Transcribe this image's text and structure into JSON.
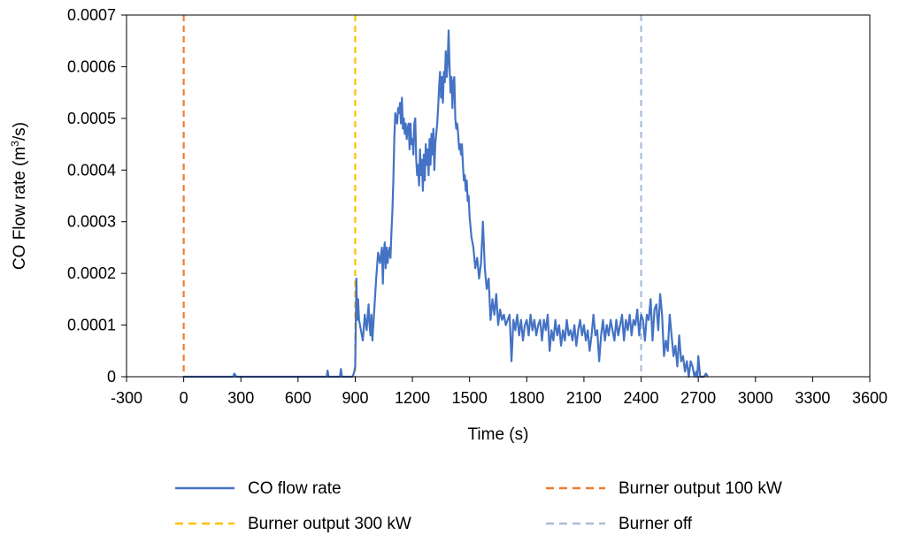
{
  "chart_data": {
    "type": "line",
    "xlabel": "Time (s)",
    "ylabel_main": "CO Flow rate (m",
    "ylabel_sup": "3",
    "ylabel_end": "/s)",
    "xlim": [
      -300,
      3600
    ],
    "ylim": [
      0,
      0.0007
    ],
    "x_ticks": [
      -300,
      0,
      300,
      600,
      900,
      1200,
      1500,
      1800,
      2100,
      2400,
      2700,
      3000,
      3300,
      3600
    ],
    "x_tick_labels": [
      "-300",
      "0",
      "300",
      "600",
      "900",
      "1200",
      "1500",
      "1800",
      "2100",
      "2400",
      "2700",
      "3000",
      "3300",
      "3600"
    ],
    "y_ticks": [
      0,
      0.0001,
      0.0002,
      0.0003,
      0.0004,
      0.0005,
      0.0006,
      0.0007
    ],
    "y_tick_labels": [
      "0",
      "0.0001",
      "0.0002",
      "0.0003",
      "0.0004",
      "0.0005",
      "0.0006",
      "0.0007"
    ],
    "grid": false,
    "legend_position": "bottom",
    "series": [
      {
        "name": "CO flow rate",
        "color": "#4472c4",
        "style": "solid",
        "x": [
          0,
          260,
          265,
          270,
          275,
          280,
          750,
          755,
          760,
          820,
          825,
          830,
          885,
          890,
          895,
          900,
          903,
          906,
          910,
          915,
          920,
          930,
          940,
          950,
          960,
          970,
          975,
          980,
          985,
          990,
          1000,
          1010,
          1020,
          1030,
          1040,
          1045,
          1050,
          1055,
          1060,
          1065,
          1070,
          1075,
          1080,
          1085,
          1090,
          1095,
          1100,
          1105,
          1110,
          1115,
          1120,
          1125,
          1130,
          1135,
          1140,
          1145,
          1150,
          1155,
          1160,
          1165,
          1170,
          1175,
          1180,
          1185,
          1190,
          1195,
          1200,
          1205,
          1210,
          1215,
          1220,
          1225,
          1230,
          1235,
          1240,
          1245,
          1250,
          1255,
          1260,
          1265,
          1270,
          1275,
          1280,
          1285,
          1290,
          1295,
          1300,
          1305,
          1310,
          1315,
          1320,
          1325,
          1330,
          1335,
          1340,
          1345,
          1350,
          1355,
          1360,
          1365,
          1370,
          1375,
          1380,
          1385,
          1390,
          1395,
          1400,
          1405,
          1410,
          1415,
          1420,
          1425,
          1430,
          1435,
          1440,
          1445,
          1450,
          1455,
          1460,
          1465,
          1470,
          1475,
          1480,
          1485,
          1490,
          1495,
          1500,
          1510,
          1520,
          1530,
          1540,
          1550,
          1560,
          1570,
          1580,
          1590,
          1600,
          1610,
          1620,
          1630,
          1640,
          1650,
          1660,
          1670,
          1680,
          1690,
          1700,
          1710,
          1720,
          1730,
          1740,
          1750,
          1760,
          1770,
          1780,
          1790,
          1800,
          1810,
          1820,
          1830,
          1840,
          1850,
          1860,
          1870,
          1880,
          1890,
          1900,
          1910,
          1920,
          1930,
          1940,
          1950,
          1960,
          1970,
          1980,
          1990,
          2000,
          2010,
          2020,
          2030,
          2040,
          2050,
          2060,
          2070,
          2080,
          2090,
          2100,
          2110,
          2120,
          2130,
          2140,
          2150,
          2160,
          2170,
          2180,
          2190,
          2200,
          2210,
          2220,
          2230,
          2240,
          2250,
          2260,
          2270,
          2280,
          2290,
          2300,
          2310,
          2320,
          2330,
          2340,
          2350,
          2360,
          2370,
          2380,
          2390,
          2400,
          2410,
          2420,
          2430,
          2440,
          2450,
          2460,
          2470,
          2480,
          2490,
          2500,
          2510,
          2520,
          2530,
          2540,
          2550,
          2560,
          2570,
          2580,
          2590,
          2600,
          2610,
          2620,
          2630,
          2640,
          2650,
          2660,
          2670,
          2680,
          2690,
          2695,
          2700,
          2710,
          2720,
          2730,
          2740,
          2750
        ],
        "y": [
          0,
          0,
          6e-06,
          4e-06,
          0,
          0,
          0,
          1.2e-05,
          0,
          0,
          1.5e-05,
          0,
          0,
          4e-06,
          1e-05,
          2e-05,
          0.0001,
          0.00019,
          0.00011,
          0.00015,
          0.00011,
          9e-05,
          7e-05,
          0.00012,
          9e-05,
          0.00014,
          0.0001,
          8e-05,
          0.00012,
          7e-05,
          0.00013,
          0.00019,
          0.00024,
          0.00022,
          0.00025,
          0.00018,
          0.00024,
          0.00026,
          0.00021,
          0.00025,
          0.00022,
          0.00024,
          0.00025,
          0.00023,
          0.00028,
          0.00032,
          0.00038,
          0.00046,
          0.00051,
          0.0005,
          0.00049,
          0.00052,
          0.00051,
          0.00053,
          0.00049,
          0.00054,
          0.00048,
          0.0005,
          0.00047,
          0.00049,
          0.00046,
          0.00048,
          0.00049,
          0.00044,
          0.00049,
          0.00045,
          0.00046,
          0.00043,
          0.00049,
          0.0005,
          0.00042,
          0.00039,
          0.00041,
          0.00037,
          0.00044,
          0.00039,
          0.00042,
          0.00036,
          0.00043,
          0.00038,
          0.00045,
          0.00041,
          0.00044,
          0.00039,
          0.00046,
          0.00041,
          0.00047,
          0.00043,
          0.00048,
          0.0004,
          0.00045,
          0.00047,
          0.00049,
          0.00052,
          0.00056,
          0.00059,
          0.00054,
          0.00058,
          0.00053,
          0.00059,
          0.00057,
          0.00063,
          0.00058,
          0.00061,
          0.00067,
          0.0006,
          0.00055,
          0.00058,
          0.00052,
          0.00057,
          0.00058,
          0.0005,
          0.00048,
          0.00049,
          0.00047,
          0.00044,
          0.00045,
          0.00043,
          0.00045,
          0.00041,
          0.00038,
          0.00039,
          0.00036,
          0.00038,
          0.00034,
          0.00035,
          0.00031,
          0.00027,
          0.00025,
          0.00021,
          0.00023,
          0.00019,
          0.00022,
          0.0003,
          0.00021,
          0.00017,
          0.00019,
          0.00011,
          0.00015,
          0.00012,
          0.00016,
          0.0001,
          0.00013,
          0.00011,
          0.00012,
          0.0001,
          0.00011,
          0.00012,
          3e-05,
          0.00011,
          9e-05,
          0.00012,
          8e-05,
          0.00011,
          7e-05,
          0.0001,
          0.00011,
          8e-05,
          0.00012,
          9e-05,
          0.00011,
          8e-05,
          0.0001,
          0.00011,
          7e-05,
          0.00011,
          9e-05,
          0.00012,
          5e-05,
          9e-05,
          7e-05,
          0.00011,
          8e-05,
          0.0001,
          6e-05,
          9e-05,
          7e-05,
          0.00011,
          8e-05,
          9e-05,
          7e-05,
          0.0001,
          6e-05,
          9e-05,
          0.00011,
          8e-05,
          0.0001,
          7e-05,
          9e-05,
          5e-05,
          8e-05,
          0.00012,
          8e-05,
          9e-05,
          3e-05,
          8e-05,
          0.00011,
          7e-05,
          0.0001,
          8e-05,
          0.00011,
          9e-05,
          7e-05,
          0.00011,
          8e-05,
          0.0001,
          0.00012,
          7e-05,
          0.00011,
          9e-05,
          0.00012,
          8e-05,
          0.00011,
          0.0001,
          0.00013,
          8e-05,
          0.00012,
          0.00011,
          7e-05,
          0.00012,
          0.00011,
          0.00015,
          7e-05,
          0.00013,
          0.00014,
          9e-05,
          0.00016,
          0.00012,
          4e-05,
          7e-05,
          5e-05,
          0.00012,
          8e-05,
          4e-05,
          6e-05,
          2e-05,
          8e-05,
          3e-05,
          4e-05,
          1e-05,
          3e-05,
          0,
          3e-05,
          2e-05,
          0,
          1e-05,
          0,
          4e-05,
          0,
          0,
          0,
          6e-06,
          0
        ]
      },
      {
        "name": "Burner output 100 kW",
        "color": "#ed7d31",
        "style": "dashed",
        "x": [
          0,
          0
        ],
        "y": [
          0,
          0.0007
        ]
      },
      {
        "name": "Burner output 300 kW",
        "color": "#ffc000",
        "style": "dashed",
        "x": [
          900,
          900
        ],
        "y": [
          0,
          0.0007
        ]
      },
      {
        "name": "Burner off",
        "color": "#a9bcd9",
        "style": "dashed",
        "x": [
          2400,
          2400
        ],
        "y": [
          0,
          0.0007
        ]
      }
    ]
  }
}
